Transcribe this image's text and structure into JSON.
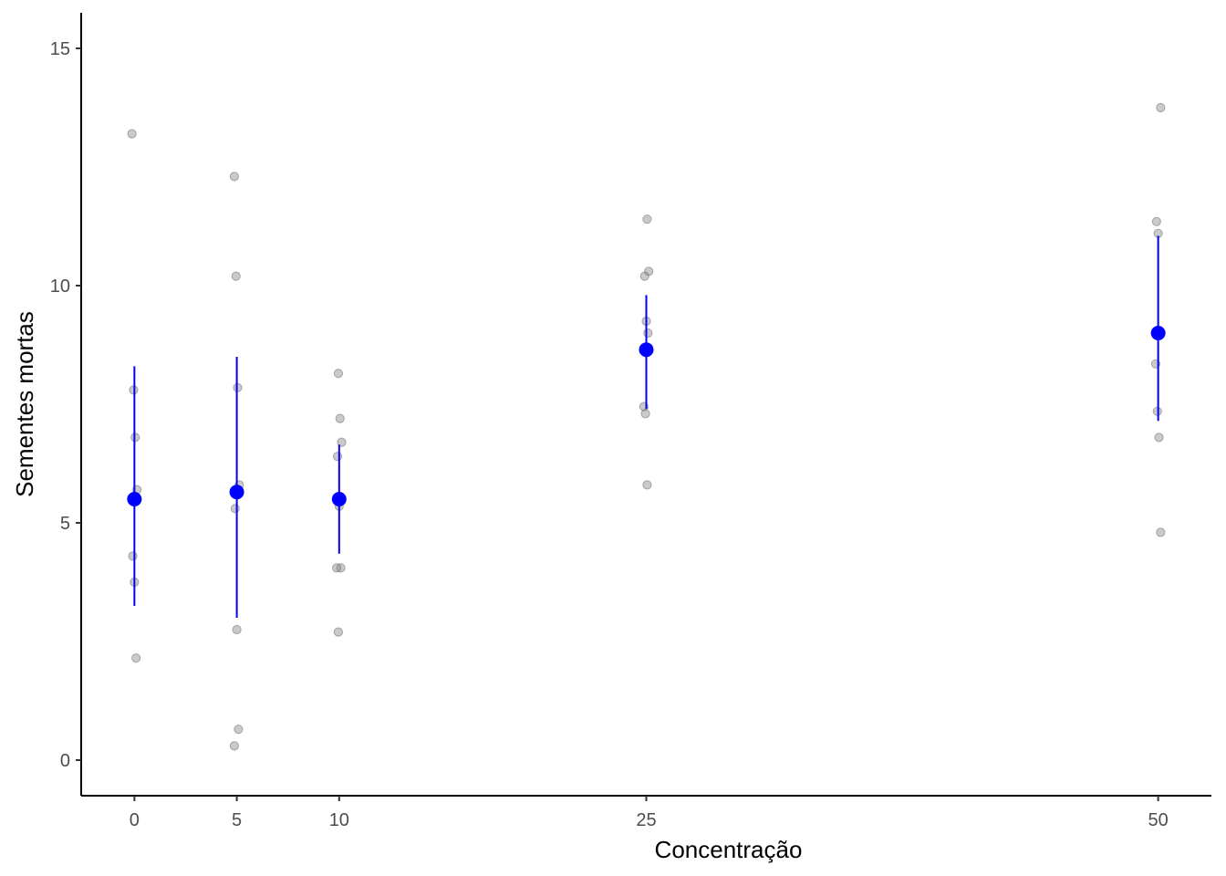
{
  "chart_data": {
    "type": "scatter",
    "xlabel": "Concentração",
    "ylabel": "Sementes mortas",
    "x_ticks": [
      0,
      5,
      10,
      25,
      50
    ],
    "y_ticks": [
      0,
      5,
      10,
      15
    ],
    "xlim": [
      -2.6,
      52.6
    ],
    "ylim": [
      -0.75,
      15.75
    ],
    "grid": false,
    "legend": "none",
    "raw_points": [
      {
        "x": 0,
        "y": 13.2
      },
      {
        "x": 0,
        "y": 7.8
      },
      {
        "x": 0,
        "y": 6.8
      },
      {
        "x": 0,
        "y": 5.7
      },
      {
        "x": 0,
        "y": 4.3
      },
      {
        "x": 0,
        "y": 3.75
      },
      {
        "x": 0,
        "y": 2.15
      },
      {
        "x": 5,
        "y": 12.3
      },
      {
        "x": 5,
        "y": 10.2
      },
      {
        "x": 5,
        "y": 7.85
      },
      {
        "x": 5,
        "y": 5.8
      },
      {
        "x": 5,
        "y": 5.3
      },
      {
        "x": 5,
        "y": 2.75
      },
      {
        "x": 5,
        "y": 0.65
      },
      {
        "x": 5,
        "y": 0.3
      },
      {
        "x": 10,
        "y": 8.15
      },
      {
        "x": 10,
        "y": 7.2
      },
      {
        "x": 10,
        "y": 6.7
      },
      {
        "x": 10,
        "y": 6.4
      },
      {
        "x": 10,
        "y": 5.35
      },
      {
        "x": 10,
        "y": 4.05
      },
      {
        "x": 10,
        "y": 4.05
      },
      {
        "x": 10,
        "y": 2.7
      },
      {
        "x": 25,
        "y": 11.4
      },
      {
        "x": 25,
        "y": 10.3
      },
      {
        "x": 25,
        "y": 10.2
      },
      {
        "x": 25,
        "y": 9.25
      },
      {
        "x": 25,
        "y": 9.0
      },
      {
        "x": 25,
        "y": 7.45
      },
      {
        "x": 25,
        "y": 7.3
      },
      {
        "x": 25,
        "y": 5.8
      },
      {
        "x": 50,
        "y": 13.75
      },
      {
        "x": 50,
        "y": 11.35
      },
      {
        "x": 50,
        "y": 11.1
      },
      {
        "x": 50,
        "y": 9.0
      },
      {
        "x": 50,
        "y": 8.35
      },
      {
        "x": 50,
        "y": 7.35
      },
      {
        "x": 50,
        "y": 6.8
      },
      {
        "x": 50,
        "y": 4.8
      }
    ],
    "summary": [
      {
        "x": 0,
        "mean": 5.5,
        "lower": 3.25,
        "upper": 8.3
      },
      {
        "x": 5,
        "mean": 5.65,
        "lower": 3.0,
        "upper": 8.5
      },
      {
        "x": 10,
        "mean": 5.5,
        "lower": 4.35,
        "upper": 6.65
      },
      {
        "x": 25,
        "mean": 8.65,
        "lower": 7.4,
        "upper": 9.8
      },
      {
        "x": 50,
        "mean": 9.0,
        "lower": 7.15,
        "upper": 11.05
      }
    ],
    "colors": {
      "raw_points": "#808080",
      "summary": "#0000ff",
      "axis": "#000000",
      "tick_text": "#4d4d4d"
    }
  }
}
